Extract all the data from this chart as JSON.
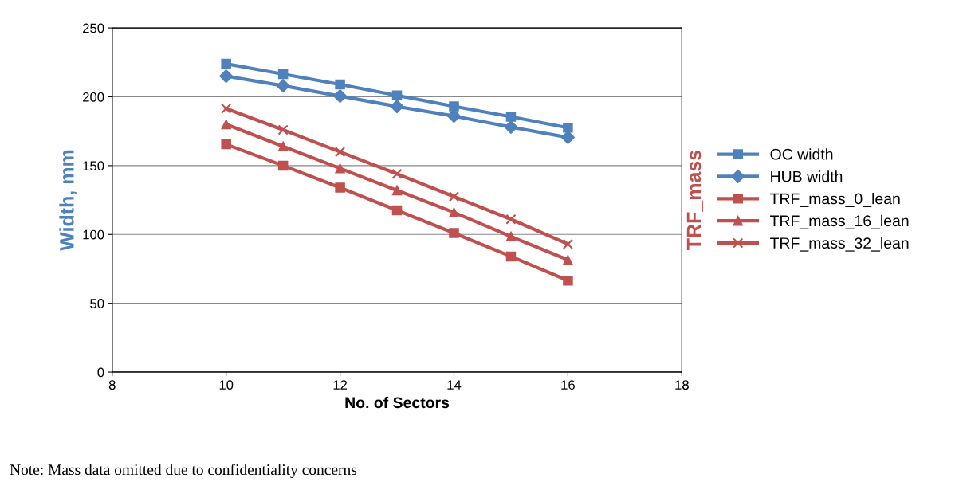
{
  "chart_data": {
    "type": "line",
    "xlabel": "No. of Sectors",
    "ylabel": "Width, mm",
    "y2label": "TRF_mass",
    "x": [
      10,
      11,
      12,
      13,
      14,
      15,
      16
    ],
    "series": [
      {
        "name": "OC width",
        "color": "#4f81bd",
        "marker": "square",
        "values": [
          224,
          216.5,
          209,
          201,
          193,
          185.5,
          177.5
        ]
      },
      {
        "name": "HUB width",
        "color": "#4f81bd",
        "marker": "diamond",
        "values": [
          215,
          208,
          200.5,
          193,
          186,
          178,
          170.5
        ]
      },
      {
        "name": "TRF_mass_0_lean",
        "color": "#c0504d",
        "marker": "square",
        "values": [
          165.5,
          150,
          134,
          117.5,
          101,
          84,
          66.5
        ]
      },
      {
        "name": "TRF_mass_16_lean",
        "color": "#c0504d",
        "marker": "triangle",
        "values": [
          180,
          164,
          148,
          132,
          116,
          98.5,
          81.5
        ]
      },
      {
        "name": "TRF_mass_32_lean",
        "color": "#c0504d",
        "marker": "cross",
        "values": [
          191.5,
          176,
          160,
          144,
          127.5,
          111,
          93
        ]
      }
    ],
    "xlim": [
      8,
      18
    ],
    "xticks": [
      8,
      10,
      12,
      14,
      16,
      18
    ],
    "ylim": [
      0,
      250
    ],
    "yticks": [
      0,
      50,
      100,
      150,
      200,
      250
    ],
    "grid": "y",
    "legend": "right",
    "line_style": "solid",
    "annotations": [
      "Note: Mass data omitted due to confidentiality concerns"
    ]
  }
}
